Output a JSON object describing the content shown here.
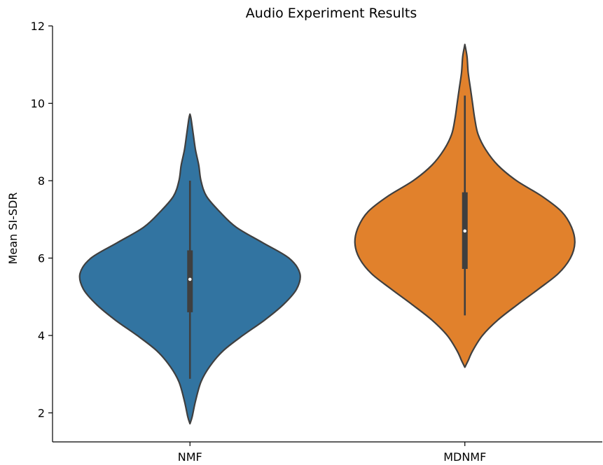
{
  "chart_data": {
    "type": "violin",
    "title": "Audio Experiment Results",
    "xlabel": "",
    "ylabel": "Mean SI-SDR",
    "ylim": [
      1.25,
      12
    ],
    "yticks": [
      2,
      4,
      6,
      8,
      10,
      12
    ],
    "categories": [
      "NMF",
      "MDNMF"
    ],
    "grid": false,
    "colors": {
      "NMF": "#3274a1",
      "MDNMF": "#e1812c",
      "outline": "#3f3f3f",
      "box": "#3f3f3f",
      "median": "#ffffff"
    },
    "violins": [
      {
        "category": "NMF",
        "min": 1.72,
        "max": 9.72,
        "median": 5.45,
        "q1": 4.6,
        "q3": 6.2,
        "whisker_low": 2.88,
        "whisker_high": 8.0,
        "density_profile": [
          [
            1.72,
            0.0
          ],
          [
            1.9,
            0.02
          ],
          [
            2.3,
            0.05
          ],
          [
            2.8,
            0.1
          ],
          [
            3.2,
            0.18
          ],
          [
            3.6,
            0.3
          ],
          [
            4.0,
            0.48
          ],
          [
            4.4,
            0.68
          ],
          [
            4.8,
            0.85
          ],
          [
            5.2,
            0.97
          ],
          [
            5.6,
            1.0
          ],
          [
            6.0,
            0.9
          ],
          [
            6.4,
            0.66
          ],
          [
            6.8,
            0.42
          ],
          [
            7.2,
            0.27
          ],
          [
            7.6,
            0.15
          ],
          [
            8.0,
            0.1
          ],
          [
            8.4,
            0.08
          ],
          [
            8.8,
            0.05
          ],
          [
            9.2,
            0.03
          ],
          [
            9.6,
            0.01
          ],
          [
            9.72,
            0.0
          ]
        ]
      },
      {
        "category": "MDNMF",
        "min": 3.18,
        "max": 11.52,
        "median": 6.7,
        "q1": 5.72,
        "q3": 7.7,
        "whisker_low": 4.52,
        "whisker_high": 10.2,
        "density_profile": [
          [
            3.18,
            0.0
          ],
          [
            3.35,
            0.03
          ],
          [
            3.6,
            0.07
          ],
          [
            4.0,
            0.16
          ],
          [
            4.4,
            0.3
          ],
          [
            4.8,
            0.48
          ],
          [
            5.2,
            0.67
          ],
          [
            5.6,
            0.85
          ],
          [
            6.0,
            0.96
          ],
          [
            6.4,
            1.0
          ],
          [
            6.8,
            0.97
          ],
          [
            7.2,
            0.88
          ],
          [
            7.6,
            0.7
          ],
          [
            8.0,
            0.47
          ],
          [
            8.4,
            0.3
          ],
          [
            8.8,
            0.19
          ],
          [
            9.2,
            0.12
          ],
          [
            9.6,
            0.09
          ],
          [
            10.0,
            0.07
          ],
          [
            10.4,
            0.05
          ],
          [
            10.8,
            0.03
          ],
          [
            11.2,
            0.02
          ],
          [
            11.52,
            0.0
          ]
        ]
      }
    ]
  }
}
